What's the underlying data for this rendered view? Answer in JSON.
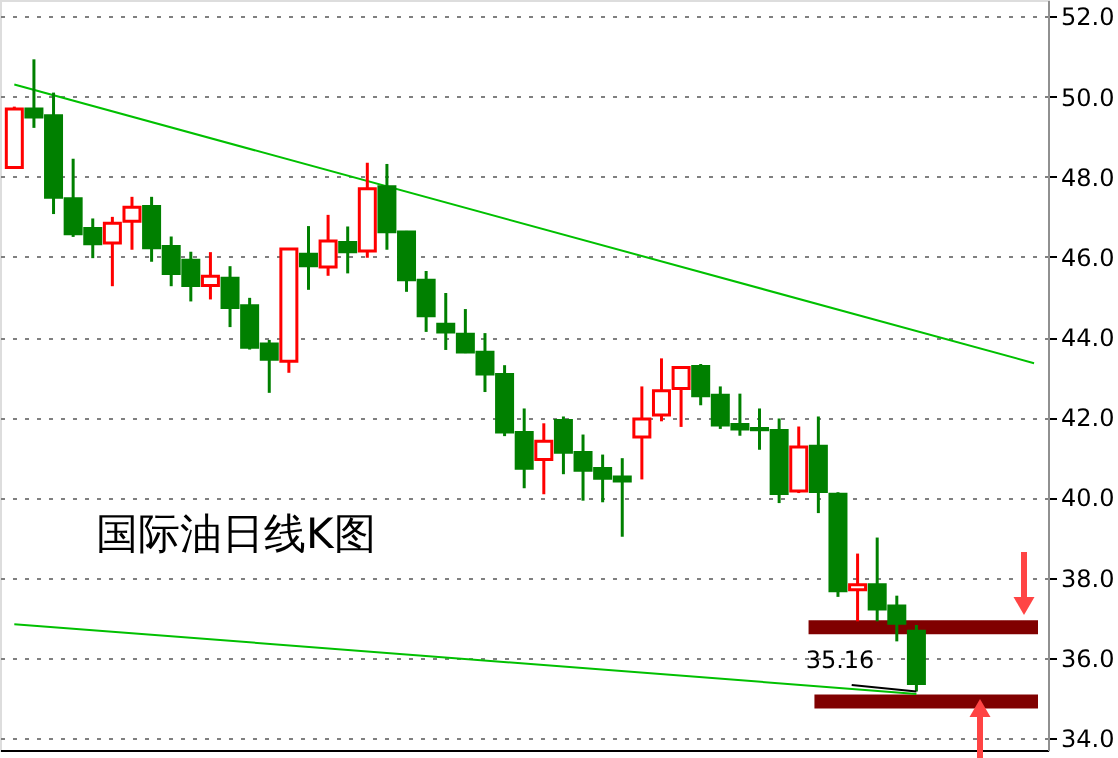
{
  "chart_data": {
    "type": "candlestick",
    "title": "国际油日线K图",
    "categories": [
      null,
      null,
      null,
      null,
      null,
      null,
      null,
      null,
      null,
      null,
      null,
      null,
      null,
      null,
      null,
      null,
      null,
      null,
      null,
      null,
      null,
      null,
      null,
      null,
      null,
      null,
      null,
      null,
      null,
      null,
      null,
      null,
      null,
      null,
      null,
      null,
      null,
      null,
      null,
      null,
      null,
      null,
      null,
      null,
      null,
      null,
      null,
      null,
      null,
      null,
      null,
      null,
      null
    ],
    "ohlc": [
      [
        48.23,
        49.75,
        48.2,
        49.69
      ],
      [
        49.69,
        50.93,
        49.22,
        49.49
      ],
      [
        49.52,
        50.1,
        47.07,
        47.49
      ],
      [
        47.45,
        48.45,
        46.5,
        46.58
      ],
      [
        46.71,
        46.96,
        45.97,
        46.33
      ],
      [
        46.35,
        47.0,
        45.27,
        46.84
      ],
      [
        46.89,
        47.5,
        46.18,
        47.24
      ],
      [
        47.26,
        47.5,
        45.88,
        46.23
      ],
      [
        46.26,
        46.51,
        45.27,
        45.59
      ],
      [
        45.92,
        46.13,
        44.89,
        45.29
      ],
      [
        45.29,
        46.12,
        44.94,
        45.52
      ],
      [
        45.47,
        45.77,
        44.25,
        44.74
      ],
      [
        44.78,
        44.98,
        43.69,
        43.75
      ],
      [
        43.83,
        43.93,
        42.61,
        43.45
      ],
      [
        43.4,
        46.2,
        43.11,
        46.2
      ],
      [
        46.07,
        46.77,
        45.18,
        45.78
      ],
      [
        45.75,
        47.05,
        45.53,
        46.4
      ],
      [
        46.36,
        46.76,
        45.59,
        46.13
      ],
      [
        46.15,
        48.35,
        45.98,
        47.7
      ],
      [
        47.75,
        48.32,
        46.18,
        46.63
      ],
      [
        46.62,
        46.65,
        45.13,
        45.43
      ],
      [
        45.42,
        45.65,
        44.13,
        44.53
      ],
      [
        44.32,
        45.1,
        43.68,
        44.13
      ],
      [
        44.07,
        44.7,
        43.6,
        43.63
      ],
      [
        43.62,
        44.1,
        42.63,
        43.08
      ],
      [
        43.07,
        43.3,
        41.53,
        41.63
      ],
      [
        41.62,
        42.22,
        40.23,
        40.73
      ],
      [
        40.95,
        41.85,
        40.08,
        41.4
      ],
      [
        41.92,
        42.02,
        40.58,
        41.13
      ],
      [
        41.12,
        41.57,
        39.92,
        40.68
      ],
      [
        40.72,
        41.07,
        39.88,
        40.48
      ],
      [
        40.51,
        40.98,
        39.02,
        40.41
      ],
      [
        41.51,
        42.77,
        40.45,
        41.96
      ],
      [
        42.06,
        43.47,
        41.9,
        42.66
      ],
      [
        42.72,
        43.27,
        41.76,
        43.24
      ],
      [
        43.27,
        43.33,
        42.3,
        42.54
      ],
      [
        42.55,
        42.77,
        41.71,
        41.81
      ],
      [
        41.82,
        42.59,
        41.54,
        41.71
      ],
      [
        41.72,
        42.22,
        41.19,
        41.69
      ],
      [
        41.67,
        41.97,
        39.86,
        40.1
      ],
      [
        40.16,
        41.77,
        40.11,
        41.26
      ],
      [
        41.28,
        42.02,
        39.61,
        40.15
      ],
      [
        40.08,
        40.13,
        37.52,
        37.67
      ],
      [
        37.7,
        38.6,
        36.91,
        37.82
      ],
      [
        37.82,
        39.0,
        36.91,
        37.22
      ],
      [
        37.29,
        37.55,
        36.41,
        36.86
      ],
      [
        36.66,
        36.82,
        35.16,
        35.36
      ],
      null,
      null,
      null,
      null,
      null,
      null
    ],
    "colors": [
      "#ff0000",
      "#008000",
      "#008000",
      "#008000",
      "#008000",
      "#ff0000",
      "#ff0000",
      "#008000",
      "#008000",
      "#008000",
      "#ff0000",
      "#008000",
      "#008000",
      "#008000",
      "#ff0000",
      "#008000",
      "#ff0000",
      "#008000",
      "#ff0000",
      "#008000",
      "#008000",
      "#008000",
      "#008000",
      "#008000",
      "#008000",
      "#008000",
      "#008000",
      "#ff0000",
      "#008000",
      "#008000",
      "#008000",
      "#008000",
      "#ff0000",
      "#ff0000",
      "#ff0000",
      "#008000",
      "#008000",
      "#008000",
      "#008000",
      "#008000",
      "#ff0000",
      "#008000",
      "#008000",
      "#ff0000",
      "#008000",
      "#008000",
      "#008000",
      null,
      null,
      null,
      null,
      null,
      null
    ],
    "series": [
      {
        "type": "line",
        "color": "#00c000",
        "values": [
          50.3,
          null,
          null,
          null,
          null,
          null,
          null,
          null,
          null,
          null,
          null,
          null,
          null,
          null,
          null,
          null,
          null,
          null,
          null,
          null,
          null,
          null,
          null,
          null,
          null,
          null,
          null,
          null,
          null,
          null,
          null,
          null,
          null,
          null,
          null,
          null,
          null,
          null,
          null,
          null,
          null,
          null,
          null,
          null,
          null,
          null,
          null,
          null,
          null,
          null,
          null,
          null,
          43.35
        ]
      },
      {
        "type": "line",
        "color": "#00c000",
        "values": [
          36.84,
          null,
          null,
          null,
          null,
          null,
          null,
          null,
          null,
          null,
          null,
          null,
          null,
          null,
          null,
          null,
          null,
          null,
          null,
          null,
          null,
          null,
          null,
          null,
          null,
          null,
          null,
          null,
          null,
          null,
          null,
          null,
          null,
          null,
          null,
          null,
          null,
          null,
          null,
          null,
          null,
          null,
          null,
          null,
          null,
          null,
          35.1,
          null,
          null,
          null,
          null,
          null,
          null
        ]
      }
    ],
    "ref_lines": [
      {
        "axis": "y",
        "value": 36.76,
        "color": "#800000"
      },
      {
        "axis": "y",
        "value": 34.91,
        "color": "#800000"
      }
    ],
    "annotations": [
      {
        "text": "35.16",
        "y": 35.16
      }
    ],
    "ylim": [
      33.7,
      52.41
    ],
    "yticks": [
      {
        "value": 34,
        "label": "34.0"
      },
      {
        "value": 36,
        "label": "36.0"
      },
      {
        "value": 38,
        "label": "38.0"
      },
      {
        "value": 40,
        "label": "40.0"
      },
      {
        "value": 42,
        "label": "42.0"
      },
      {
        "value": 44,
        "label": "44.0"
      },
      {
        "value": 46,
        "label": "46.0"
      },
      {
        "value": 48,
        "label": "48.0"
      },
      {
        "value": 50,
        "label": "50.0"
      },
      {
        "value": 52,
        "label": "52.0"
      }
    ],
    "grid": "y",
    "tick_labels": "y"
  }
}
